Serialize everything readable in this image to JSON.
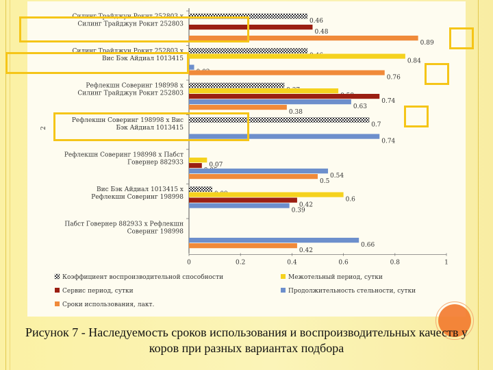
{
  "caption": "Рисунок 7 - Наследуемость сроков использования и воспроизводительных качеств у коров при разных вариантах подбора",
  "colors": {
    "background": "#fbf1a4",
    "highlight": "#f5c518",
    "decor_circle": "#f37a2e"
  },
  "chart_data": {
    "type": "bar",
    "orientation": "horizontal",
    "ylabel": "2",
    "xlim": [
      0,
      1
    ],
    "x_ticks": [
      "0",
      "0.2",
      "0.4",
      "0.6",
      "0.8",
      "1"
    ],
    "legend_position": "bottom",
    "categories": [
      "Силинг Трайджун Рокит 252803 х Силинг Трайджун Рокит 252803",
      "Силинг Трайджун Рокит 252803 х Вис Бэк Айдиал 1013415",
      "Рефлекшн Соверинг 198998 х Силинг Трайджун Рокит 252803",
      "Рефлекшн Соверинг 198998 х Вис Бэк Айдиал 1013415",
      "Рефлекшн Соверинг 198998 х Пабст Говернер 882933",
      "Вис Бэк Айдиал 1013415 х Рефлекшн Соверинг 198998",
      "Пабст Говернер 882933 х Рефлекшн Соверинг 198998"
    ],
    "series": [
      {
        "name": "Коэффициент воспроизводительной способности",
        "color": "#444444",
        "pattern": "checker",
        "values": [
          0.46,
          0.46,
          0.37,
          0.7,
          null,
          0.09,
          null
        ]
      },
      {
        "name": "Межотельный период, сутки",
        "color": "#f5d21e",
        "values": [
          null,
          0.84,
          0.58,
          null,
          0.07,
          0.6,
          null
        ]
      },
      {
        "name": "Сервис период, сутки",
        "color": "#9b1f12",
        "values": [
          0.48,
          null,
          0.74,
          null,
          0.05,
          0.42,
          null
        ]
      },
      {
        "name": "Продолжительность стельности, сутки",
        "color": "#6d8fcc",
        "values": [
          null,
          0.02,
          0.63,
          0.74,
          0.54,
          0.39,
          0.66
        ]
      },
      {
        "name": "Сроки использования, лакт.",
        "color": "#f08a3a",
        "values": [
          0.89,
          0.76,
          0.38,
          null,
          0.5,
          null,
          0.42
        ]
      }
    ]
  }
}
